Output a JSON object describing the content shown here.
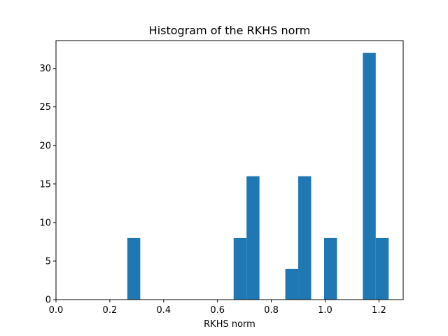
{
  "chart_data": {
    "type": "bar",
    "title": "Histogram of the RKHS norm",
    "xlabel": "RKHS norm",
    "ylabel": "",
    "xlim": [
      0.0,
      1.29
    ],
    "ylim": [
      0,
      33.6
    ],
    "bar_color": "#1f77b4",
    "bin_width": 0.048,
    "bins": [
      {
        "x_left": 0.265,
        "x_right": 0.313,
        "count": 8
      },
      {
        "x_left": 0.66,
        "x_right": 0.708,
        "count": 8
      },
      {
        "x_left": 0.708,
        "x_right": 0.756,
        "count": 16
      },
      {
        "x_left": 0.852,
        "x_right": 0.9,
        "count": 4
      },
      {
        "x_left": 0.9,
        "x_right": 0.948,
        "count": 16
      },
      {
        "x_left": 0.996,
        "x_right": 1.044,
        "count": 8
      },
      {
        "x_left": 1.14,
        "x_right": 1.188,
        "count": 32
      },
      {
        "x_left": 1.188,
        "x_right": 1.236,
        "count": 8
      }
    ],
    "x_ticks": [
      0.0,
      0.2,
      0.4,
      0.6,
      0.8,
      1.0,
      1.2
    ],
    "x_tick_labels": [
      "0.0",
      "0.2",
      "0.4",
      "0.6",
      "0.8",
      "1.0",
      "1.2"
    ],
    "y_ticks": [
      0,
      5,
      10,
      15,
      20,
      25,
      30
    ],
    "y_tick_labels": [
      "0",
      "5",
      "10",
      "15",
      "20",
      "25",
      "30"
    ],
    "grid": false,
    "legend": false
  }
}
